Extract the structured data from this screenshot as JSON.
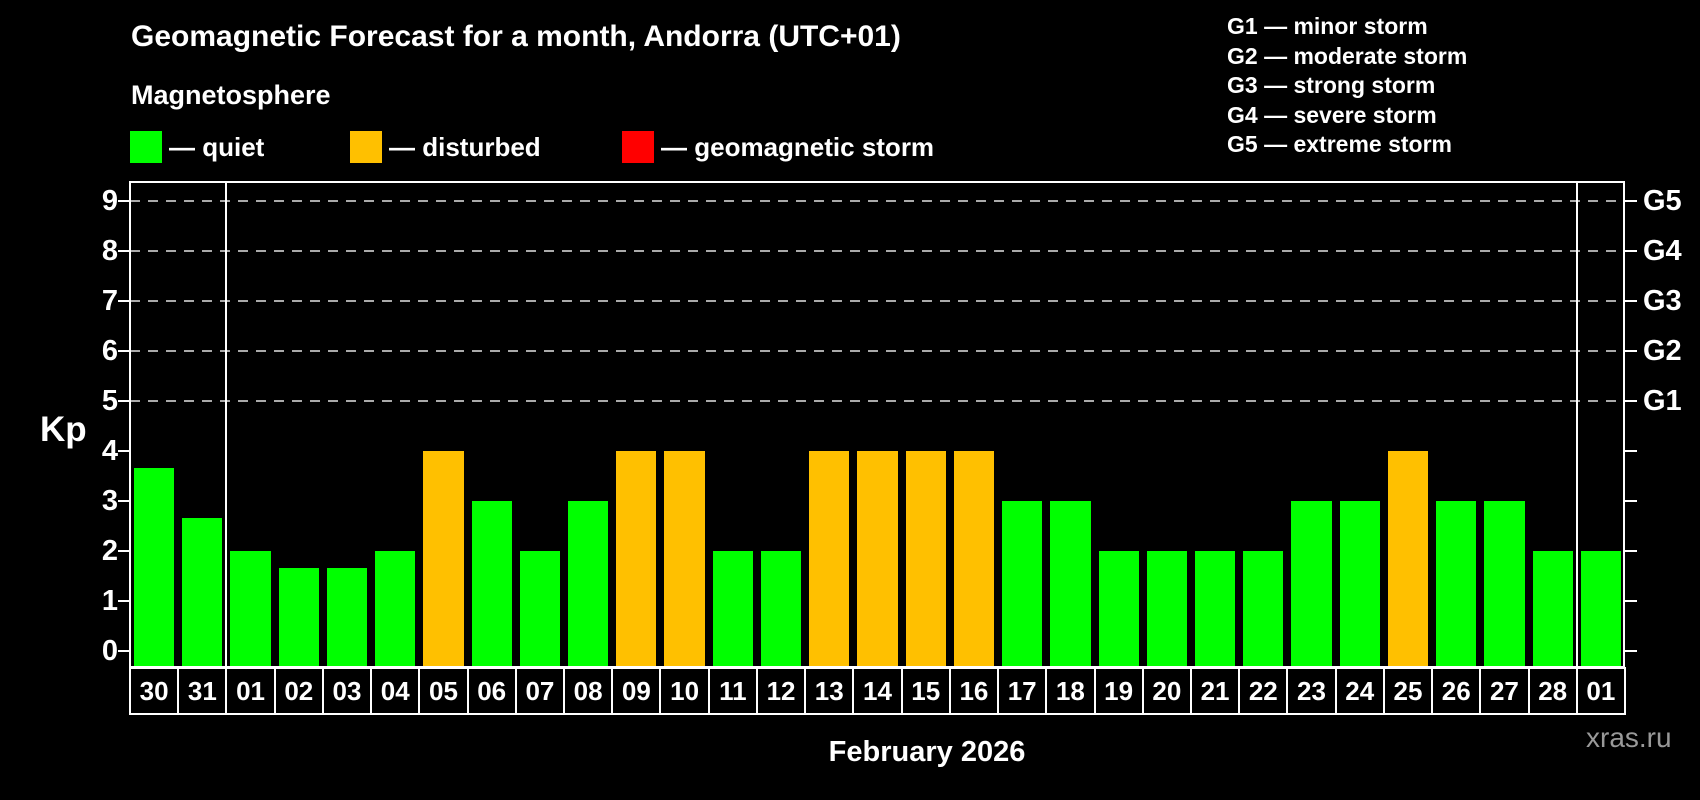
{
  "header": {
    "title": "Geomagnetic Forecast for a month, Andorra (UTC+01)",
    "subtitle": "Magnetosphere",
    "legend": [
      {
        "id": "quiet",
        "swatch_color": "#00FF00",
        "label": "— quiet"
      },
      {
        "id": "disturbed",
        "swatch_color": "#FFC000",
        "label": "— disturbed"
      },
      {
        "id": "storm",
        "swatch_color": "#FF0000",
        "label": "— geomagnetic storm"
      }
    ],
    "g_scale_legend": [
      "G1 — minor storm",
      "G2 — moderate storm",
      "G3 — strong storm",
      "G4 — severe storm",
      "G5 — extreme storm"
    ]
  },
  "chart_data": {
    "type": "bar",
    "title": "Geomagnetic Forecast for a month, Andorra (UTC+01)",
    "ylabel": "Kp",
    "xlabel": "February 2026",
    "ylim": [
      0,
      9.4
    ],
    "yticks": [
      0,
      1,
      2,
      3,
      4,
      5,
      6,
      7,
      8,
      9
    ],
    "grid": "horizontal dashed lines at Kp 5-9 only",
    "gridlines_at": [
      5,
      6,
      7,
      8,
      9
    ],
    "right_axis": {
      "labels": [
        "G1",
        "G2",
        "G3",
        "G4",
        "G5"
      ],
      "at_kp": [
        5,
        6,
        7,
        8,
        9
      ]
    },
    "categories": [
      "30",
      "31",
      "01",
      "02",
      "03",
      "04",
      "05",
      "06",
      "07",
      "08",
      "09",
      "10",
      "11",
      "12",
      "13",
      "14",
      "15",
      "16",
      "17",
      "18",
      "19",
      "20",
      "21",
      "22",
      "23",
      "24",
      "25",
      "26",
      "27",
      "28",
      "01"
    ],
    "values": [
      3.67,
      2.67,
      2,
      1.67,
      1.67,
      2,
      4,
      3,
      2,
      3,
      4,
      4,
      2,
      2,
      4,
      4,
      4,
      4,
      3,
      3,
      2,
      2,
      2,
      2,
      3,
      3,
      4,
      3,
      3,
      2,
      2
    ],
    "statuses": [
      "quiet",
      "quiet",
      "quiet",
      "quiet",
      "quiet",
      "quiet",
      "disturbed",
      "quiet",
      "quiet",
      "quiet",
      "disturbed",
      "disturbed",
      "quiet",
      "quiet",
      "disturbed",
      "disturbed",
      "disturbed",
      "disturbed",
      "quiet",
      "quiet",
      "quiet",
      "quiet",
      "quiet",
      "quiet",
      "quiet",
      "quiet",
      "disturbed",
      "quiet",
      "quiet",
      "quiet",
      "quiet"
    ],
    "status_colors": {
      "quiet": "#00FF00",
      "disturbed": "#FFC000",
      "storm": "#FF0000"
    },
    "month_separators_after_index": [
      1,
      29
    ],
    "month_separator_after_days": [
      "31",
      "28"
    ],
    "legend_position": "top-left",
    "background_color": "#000000",
    "axis_color": "#FFFFFF",
    "grid_color": "#AAAAAA"
  },
  "footer": {
    "xlabel": "February 2026",
    "watermark": "xras.ru"
  }
}
